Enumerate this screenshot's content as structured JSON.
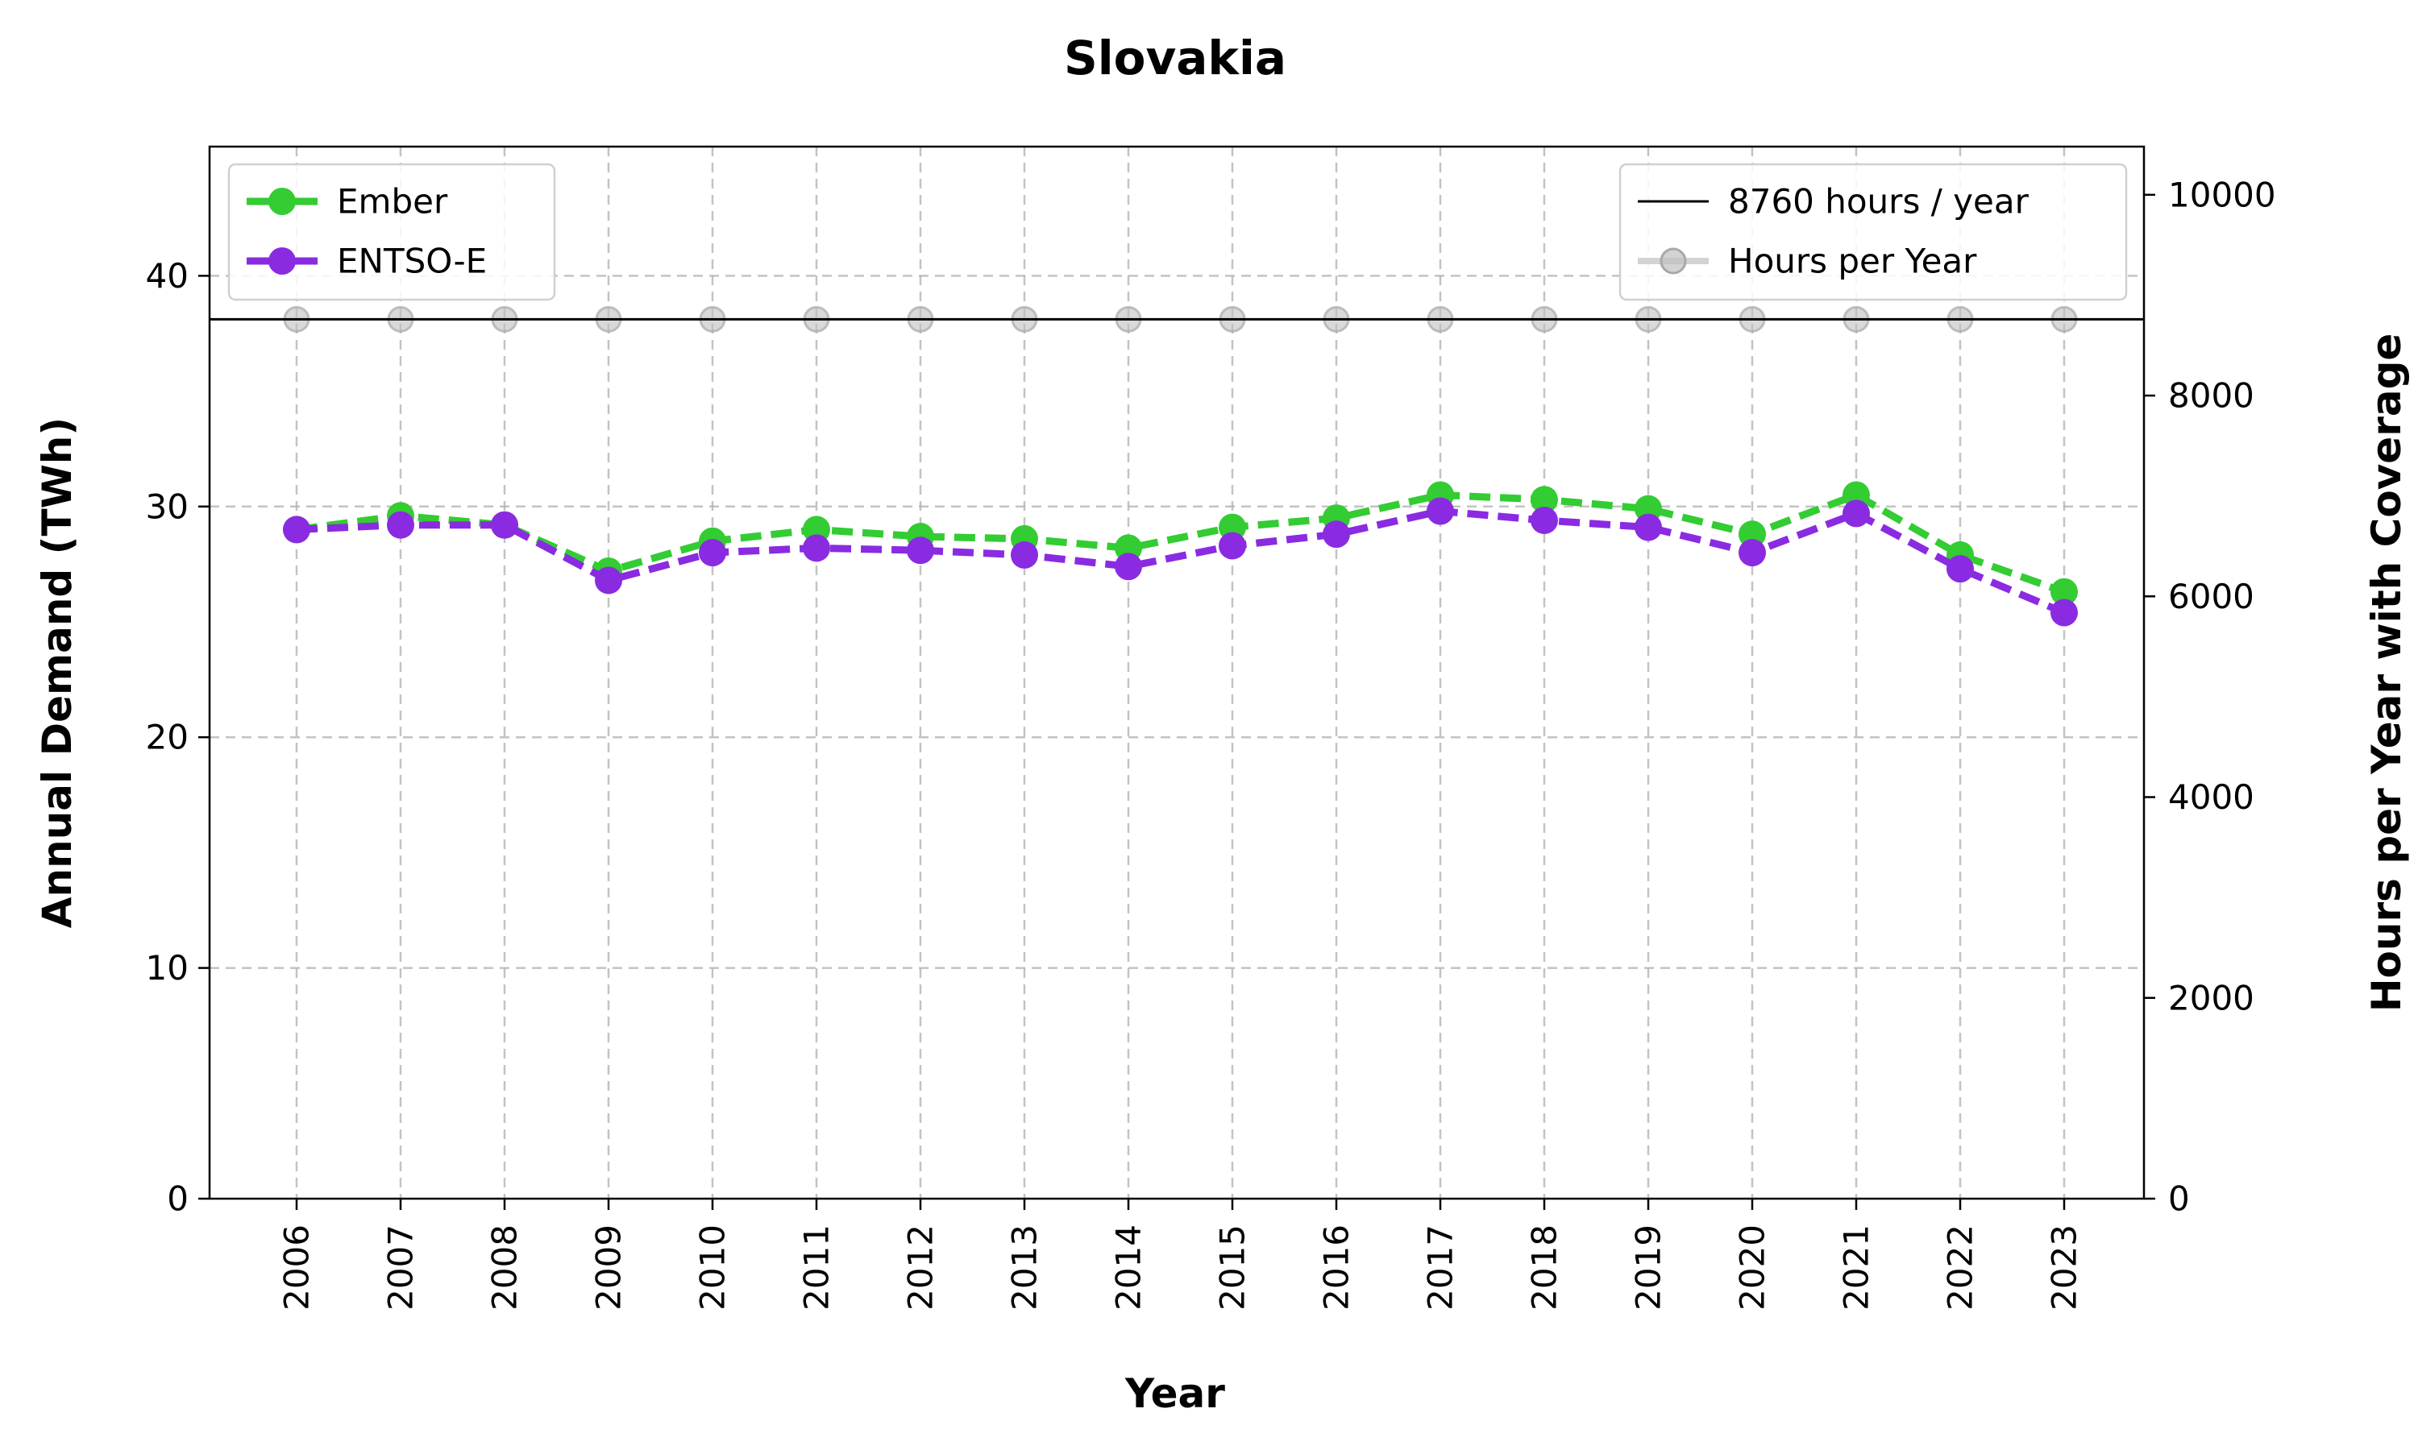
{
  "chart_data": {
    "type": "line",
    "title": "Slovakia",
    "xlabel": "Year",
    "ylabel": "Annual Demand (TWh)",
    "y2label": "Hours per Year with Coverage",
    "x": [
      "2006",
      "2007",
      "2008",
      "2009",
      "2010",
      "2011",
      "2012",
      "2013",
      "2014",
      "2015",
      "2016",
      "2017",
      "2018",
      "2019",
      "2020",
      "2021",
      "2022",
      "2023"
    ],
    "ylim": [
      0,
      45.6
    ],
    "yticks": [
      0,
      10,
      20,
      30,
      40
    ],
    "y2lim": [
      0,
      10480
    ],
    "y2ticks": [
      0,
      2000,
      4000,
      6000,
      8000,
      10000
    ],
    "grid": true,
    "series": [
      {
        "name": "Ember",
        "axis": "left",
        "color": "#33cc33",
        "style": "dashed",
        "values": [
          29.0,
          29.6,
          29.2,
          27.2,
          28.5,
          29.0,
          28.7,
          28.6,
          28.2,
          29.1,
          29.5,
          30.5,
          30.3,
          29.9,
          28.8,
          30.5,
          27.9,
          26.3
        ]
      },
      {
        "name": "ENTSO-E",
        "axis": "left",
        "color": "#8a2be2",
        "style": "dashed",
        "values": [
          29.0,
          29.2,
          29.2,
          26.8,
          28.0,
          28.2,
          28.1,
          27.9,
          27.4,
          28.3,
          28.8,
          29.8,
          29.4,
          29.1,
          28.0,
          29.7,
          27.3,
          25.4
        ]
      },
      {
        "name": "Hours per Year",
        "axis": "right",
        "color": "#c0c0c0",
        "style": "solid",
        "values": [
          8760,
          8760,
          8760,
          8760,
          8760,
          8760,
          8760,
          8760,
          8760,
          8760,
          8760,
          8760,
          8760,
          8760,
          8760,
          8760,
          8760,
          8760
        ]
      }
    ],
    "reference_line": {
      "name": "8760 hours / year",
      "axis": "right",
      "value": 8760,
      "color": "#000000"
    },
    "legend_left": [
      "Ember",
      "ENTSO-E"
    ],
    "legend_right": [
      "8760 hours / year",
      "Hours per Year"
    ],
    "legend_left_placement": "upper-left",
    "legend_right_placement": "upper-right"
  }
}
